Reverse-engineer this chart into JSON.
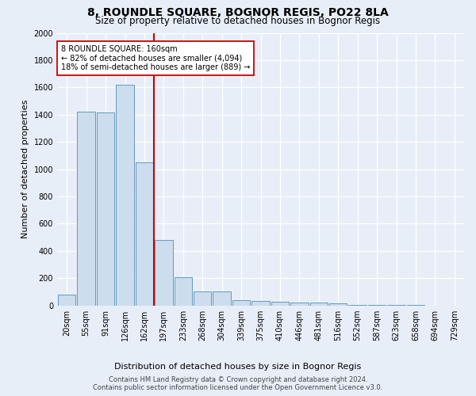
{
  "title": "8, ROUNDLE SQUARE, BOGNOR REGIS, PO22 8LA",
  "subtitle": "Size of property relative to detached houses in Bognor Regis",
  "xlabel": "Distribution of detached houses by size in Bognor Regis",
  "ylabel": "Number of detached properties",
  "bar_color": "#ccdded",
  "bar_edge_color": "#6699bb",
  "bg_color": "#e8eef8",
  "grid_color": "#ffffff",
  "categories": [
    "20sqm",
    "55sqm",
    "91sqm",
    "126sqm",
    "162sqm",
    "197sqm",
    "233sqm",
    "268sqm",
    "304sqm",
    "339sqm",
    "375sqm",
    "410sqm",
    "446sqm",
    "481sqm",
    "516sqm",
    "552sqm",
    "587sqm",
    "623sqm",
    "658sqm",
    "694sqm",
    "729sqm"
  ],
  "values": [
    80,
    1420,
    1415,
    1620,
    1050,
    480,
    205,
    105,
    105,
    40,
    35,
    25,
    20,
    20,
    15,
    5,
    3,
    2,
    1,
    0,
    0
  ],
  "ylim": [
    0,
    2000
  ],
  "yticks": [
    0,
    200,
    400,
    600,
    800,
    1000,
    1200,
    1400,
    1600,
    1800,
    2000
  ],
  "vline_x": 4.5,
  "vline_color": "#cc0000",
  "annotation_text": "8 ROUNDLE SQUARE: 160sqm\n← 82% of detached houses are smaller (4,094)\n18% of semi-detached houses are larger (889) →",
  "annotation_box_color": "#ffffff",
  "annotation_box_edge": "#cc0000",
  "footer_text": "Contains HM Land Registry data © Crown copyright and database right 2024.\nContains public sector information licensed under the Open Government Licence v3.0.",
  "title_fontsize": 10,
  "subtitle_fontsize": 8.5,
  "ylabel_fontsize": 8,
  "xlabel_fontsize": 8,
  "annotation_fontsize": 7,
  "footer_fontsize": 6,
  "tick_fontsize": 7
}
